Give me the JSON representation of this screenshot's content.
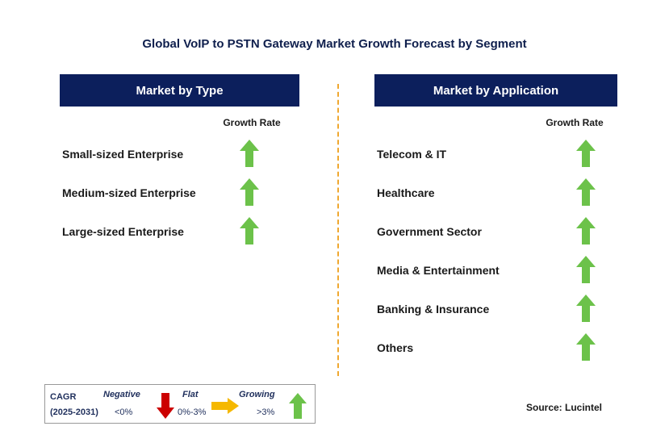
{
  "title": "Global VoIP to PSTN Gateway Market Growth Forecast by Segment",
  "left_panel": {
    "header": "Market by Type",
    "growth_label": "Growth Rate",
    "rows": [
      {
        "label": "Small-sized Enterprise",
        "trend": "growing"
      },
      {
        "label": "Medium-sized Enterprise",
        "trend": "growing"
      },
      {
        "label": "Large-sized Enterprise",
        "trend": "growing"
      }
    ]
  },
  "right_panel": {
    "header": "Market by Application",
    "growth_label": "Growth Rate",
    "rows": [
      {
        "label": "Telecom & IT",
        "trend": "growing"
      },
      {
        "label": "Healthcare",
        "trend": "growing"
      },
      {
        "label": "Government Sector",
        "trend": "growing"
      },
      {
        "label": "Media & Entertainment",
        "trend": "growing"
      },
      {
        "label": "Banking & Insurance",
        "trend": "growing"
      },
      {
        "label": "Others",
        "trend": "growing"
      }
    ]
  },
  "legend": {
    "cagr": "CAGR",
    "period": "(2025-2031)",
    "negative": {
      "label": "Negative",
      "range": "<0%",
      "color": "#cc0000",
      "icon": "arrow-down-icon"
    },
    "flat": {
      "label": "Flat",
      "range": "0%-3%",
      "color": "#f5b800",
      "icon": "arrow-right-icon"
    },
    "growing": {
      "label": "Growing",
      "range": ">3%",
      "color": "#6cc24a",
      "icon": "arrow-up-icon"
    }
  },
  "source": "Source: Lucintel",
  "colors": {
    "header_bg": "#0c1f5c",
    "divider": "#f0a830"
  }
}
